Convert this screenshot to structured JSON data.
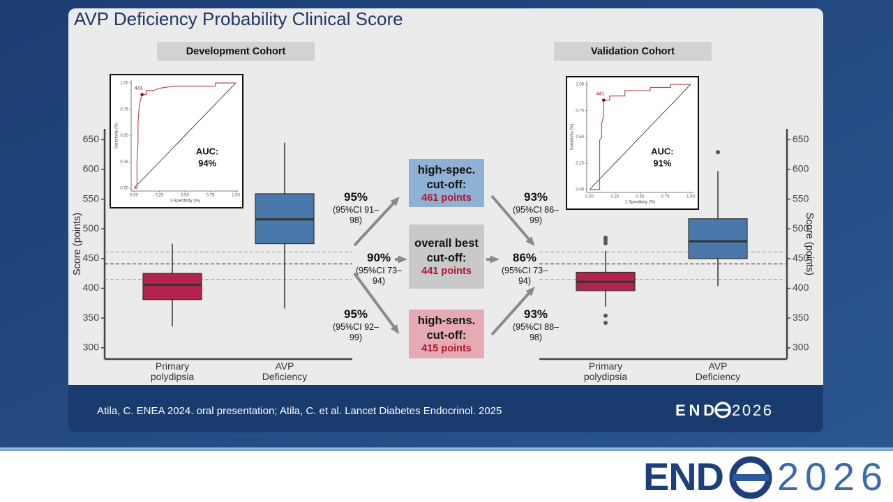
{
  "title": "AVP Deficiency Probability Clinical Score",
  "footer": {
    "citation": "Atila, C. ENEA 2024. oral presentation; Atila, C. et al. Lancet Diabetes Endocrinol. 2025",
    "logo": {
      "left": "END",
      "right": "2026"
    }
  },
  "banner_logo": {
    "left": "END",
    "right": "2026"
  },
  "cutoffs": [
    {
      "label": "high-spec. cut-off:",
      "points": "461 points",
      "color": "#8fb1d4"
    },
    {
      "label": "overall best cut-off:",
      "points": "441 points",
      "color": "#c9c9c9"
    },
    {
      "label": "high-sens. cut-off:",
      "points": "415 points",
      "color": "#e6aab5"
    }
  ],
  "stats": [
    [
      {
        "value": "95%",
        "ci": "(95%CI 91–98)"
      },
      {
        "value": "90%",
        "ci": "(95%CI 73–94)"
      },
      {
        "value": "95%",
        "ci": "(95%CI 92–99)"
      }
    ],
    [
      {
        "value": "93%",
        "ci": "(95%CI 86–99)"
      },
      {
        "value": "86%",
        "ci": "(95%CI 73–94)"
      },
      {
        "value": "93%",
        "ci": "(95%CI 88–98)"
      }
    ]
  ],
  "chart_data": [
    {
      "type": "box",
      "title": "Development Cohort",
      "y_label": "Score (points)",
      "y_axis_side": "left",
      "categories": [
        "Primary polydipsia",
        "AVP Deficiency"
      ],
      "boxes": [
        {
          "color": "#b2244c",
          "low": 336,
          "q1": 381,
          "median": 406,
          "q3": 425,
          "high": 475,
          "outliers": []
        },
        {
          "color": "#4a78aa",
          "low": 366,
          "q1": 475,
          "median": 516,
          "q3": 559,
          "high": 645,
          "outliers": []
        }
      ],
      "reference_lines": [
        {
          "value": 461,
          "color": "#a6a6a6"
        },
        {
          "value": 441,
          "color": "#333333"
        },
        {
          "value": 415,
          "color": "#a6a6a6"
        }
      ],
      "ylim": [
        281,
        668
      ],
      "yticks": [
        300,
        350,
        400,
        450,
        500,
        550,
        600,
        650
      ]
    },
    {
      "type": "box",
      "title": "Validation Cohort",
      "y_label": "Score (points)",
      "y_axis_side": "right",
      "categories": [
        "Primary polydipsia",
        "AVP Deficiency"
      ],
      "boxes": [
        {
          "color": "#b2244c",
          "low": 369,
          "q1": 396,
          "median": 411,
          "q3": 427,
          "high": 463,
          "outliers": [
            485,
            481,
            476,
            354,
            342
          ]
        },
        {
          "color": "#4a78aa",
          "low": 404,
          "q1": 450,
          "median": 479,
          "q3": 517,
          "high": 597,
          "outliers": [
            629
          ]
        }
      ],
      "reference_lines": [
        {
          "value": 461,
          "color": "#a6a6a6"
        },
        {
          "value": 441,
          "color": "#333333"
        },
        {
          "value": 415,
          "color": "#a6a6a6"
        }
      ],
      "ylim": [
        281,
        668
      ],
      "yticks": [
        300,
        350,
        400,
        450,
        500,
        550,
        600,
        650
      ]
    },
    {
      "type": "roc",
      "x_label": "1-Specificity (%)",
      "y_label": "Sensitivity (%)",
      "color": "#b5524f",
      "x": [
        0,
        0.03,
        0.03,
        0.04,
        0.04,
        0.05,
        0.06,
        0.07,
        0.08,
        0.12,
        0.12,
        0.2,
        0.25,
        0.4,
        0.8,
        0.8,
        1
      ],
      "y": [
        0,
        0,
        0.25,
        0.45,
        0.62,
        0.75,
        0.82,
        0.86,
        0.89,
        0.89,
        0.93,
        0.93,
        0.95,
        0.97,
        0.97,
        1,
        1
      ],
      "point": {
        "x": 0.08,
        "y": 0.89,
        "label": "441"
      },
      "auc_label": "AUC:",
      "auc": "94%",
      "xlim": [
        0,
        1
      ],
      "ylim": [
        0,
        1
      ],
      "xticks": [
        {
          "value": 0,
          "label": "0.00"
        },
        {
          "value": 0.25,
          "label": "0.25"
        },
        {
          "value": 0.5,
          "label": "0.50"
        },
        {
          "value": 0.75,
          "label": "0.75"
        },
        {
          "value": 1,
          "label": "1.00"
        }
      ],
      "yticks": [
        {
          "value": 0,
          "label": "0.00"
        },
        {
          "value": 0.25,
          "label": "0.25"
        },
        {
          "value": 0.5,
          "label": "0.50"
        },
        {
          "value": 0.75,
          "label": "0.75"
        },
        {
          "value": 1,
          "label": "1.00"
        }
      ]
    },
    {
      "type": "roc",
      "x_label": "1-Specificity (%)",
      "y_label": "Sensitivity (%)",
      "color": "#b5524f",
      "x": [
        0,
        0.1,
        0.1,
        0.12,
        0.12,
        0.14,
        0.14,
        0.2,
        0.2,
        0.35,
        0.35,
        0.6,
        0.6,
        0.8,
        0.8,
        1
      ],
      "y": [
        0,
        0,
        0.47,
        0.5,
        0.63,
        0.7,
        0.85,
        0.85,
        0.89,
        0.89,
        0.94,
        0.94,
        0.97,
        0.97,
        1,
        1
      ],
      "point": {
        "x": 0.14,
        "y": 0.85,
        "label": "441"
      },
      "auc_label": "AUC:",
      "auc": "91%",
      "xlim": [
        0,
        1
      ],
      "ylim": [
        0,
        1
      ],
      "xticks": [
        {
          "value": 0,
          "label": "0.00"
        },
        {
          "value": 0.25,
          "label": "0.25"
        },
        {
          "value": 0.5,
          "label": "0.50"
        },
        {
          "value": 0.75,
          "label": "0.75"
        },
        {
          "value": 1,
          "label": "1.00"
        }
      ],
      "yticks": [
        {
          "value": 0,
          "label": "0.00"
        },
        {
          "value": 0.25,
          "label": "0.25"
        },
        {
          "value": 0.5,
          "label": "0.50"
        },
        {
          "value": 0.75,
          "label": "0.75"
        },
        {
          "value": 1,
          "label": "1.00"
        }
      ]
    }
  ]
}
